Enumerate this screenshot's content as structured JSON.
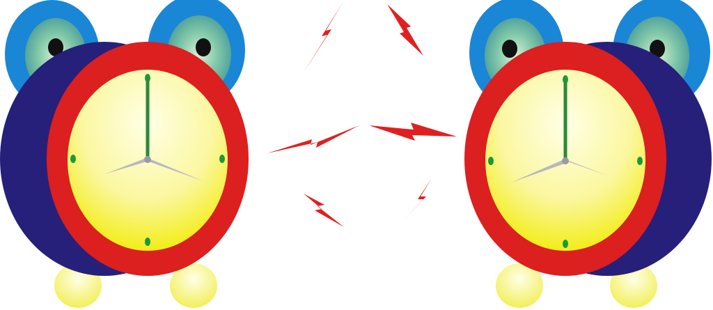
{
  "scene": {
    "subject": "two-cartoon-alarm-clocks-ringing",
    "icons": [
      "left-alarm-clock-icon",
      "right-alarm-clock-icon",
      "lightning-bolt-icon"
    ]
  },
  "colors": {
    "background": "#ffffff",
    "bell_outer": "#1e88d8",
    "bell_inner": "#6fb4a0",
    "eye_highlight": "#cfe8c8",
    "pupil": "#111111",
    "body_back": "#26207a",
    "ring": "#dd2020",
    "face_top": "#ffffd8",
    "face_bottom": "#f4f000",
    "hand_hour_minute": "#2a8a3a",
    "hand_silver": "#b8b8c0",
    "marker": "#1a9a3a",
    "foot": "#f6f46a",
    "bolt": "#e02020"
  },
  "clocks": [
    {
      "name": "left-clock",
      "mirrored": false
    },
    {
      "name": "right-clock",
      "mirrored": true
    }
  ]
}
